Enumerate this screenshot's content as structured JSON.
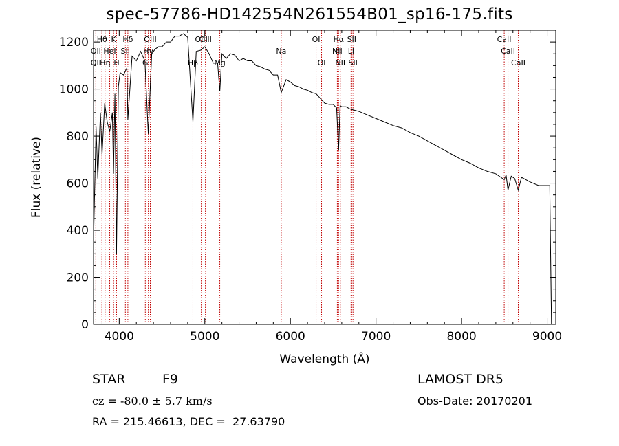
{
  "chart_data": {
    "type": "line",
    "title": "spec-57786-HD142554N261554B01_sp16-175.fits",
    "xlabel": "Wavelength (Å)",
    "ylabel": "Flux (relative)",
    "xlim": [
      3700,
      9100
    ],
    "ylim": [
      0,
      1250
    ],
    "x_ticks": [
      4000,
      5000,
      6000,
      7000,
      8000,
      9000
    ],
    "y_ticks": [
      0,
      200,
      400,
      600,
      800,
      1000,
      1200
    ],
    "grid": false,
    "line_color": "#000000",
    "marker_color": "#c00000",
    "series": [
      {
        "x": [
          3700,
          3730,
          3750,
          3780,
          3800,
          3830,
          3860,
          3890,
          3920,
          3933,
          3950,
          3968,
          3990,
          4010,
          4050,
          4090,
          4101,
          4150,
          4200,
          4250,
          4300,
          4340,
          4380,
          4420,
          4460,
          4500,
          4550,
          4600,
          4650,
          4700,
          4750,
          4800,
          4861,
          4900,
          4950,
          5000,
          5050,
          5100,
          5150,
          5175,
          5200,
          5250,
          5300,
          5350,
          5400,
          5450,
          5500,
          5550,
          5600,
          5650,
          5700,
          5750,
          5800,
          5850,
          5893,
          5950,
          6000,
          6050,
          6100,
          6150,
          6200,
          6250,
          6300,
          6350,
          6400,
          6450,
          6500,
          6540,
          6563,
          6580,
          6600,
          6650,
          6700,
          6800,
          6900,
          7000,
          7100,
          7200,
          7300,
          7400,
          7500,
          7600,
          7700,
          7800,
          7900,
          8000,
          8100,
          8200,
          8300,
          8400,
          8498,
          8520,
          8542,
          8580,
          8620,
          8662,
          8700,
          8800,
          8900,
          9000,
          9030,
          9050
        ],
        "y": [
          350,
          840,
          620,
          900,
          720,
          940,
          860,
          820,
          900,
          640,
          980,
          300,
          1010,
          1070,
          1060,
          1090,
          870,
          1140,
          1120,
          1160,
          1120,
          810,
          1150,
          1170,
          1180,
          1180,
          1200,
          1200,
          1225,
          1225,
          1235,
          1220,
          860,
          1160,
          1165,
          1180,
          1150,
          1110,
          1110,
          990,
          1150,
          1130,
          1150,
          1145,
          1120,
          1130,
          1120,
          1120,
          1100,
          1095,
          1085,
          1080,
          1060,
          1060,
          985,
          1040,
          1030,
          1015,
          1010,
          1000,
          995,
          985,
          980,
          960,
          940,
          935,
          935,
          920,
          740,
          930,
          925,
          925,
          915,
          905,
          890,
          875,
          860,
          845,
          835,
          815,
          800,
          780,
          760,
          740,
          720,
          700,
          685,
          665,
          650,
          640,
          615,
          635,
          570,
          630,
          620,
          570,
          625,
          605,
          590,
          590,
          590,
          0
        ]
      }
    ],
    "line_markers": [
      {
        "label": "Hθ",
        "x": 3798,
        "row": 0
      },
      {
        "label": "OII",
        "x": 3727,
        "row": 1
      },
      {
        "label": "OII",
        "x": 3727,
        "row": 2
      },
      {
        "label": "K",
        "x": 3934,
        "row": 0
      },
      {
        "label": "HeI",
        "x": 3889,
        "row": 1
      },
      {
        "label": "Hη",
        "x": 3835,
        "row": 2
      },
      {
        "label": "H",
        "x": 3969,
        "row": 2
      },
      {
        "label": "Hδ",
        "x": 4101,
        "row": 0
      },
      {
        "label": "SII",
        "x": 4072,
        "row": 1
      },
      {
        "label": "OIII",
        "x": 4363,
        "row": 0
      },
      {
        "label": "Hγ",
        "x": 4340,
        "row": 1
      },
      {
        "label": "G",
        "x": 4305,
        "row": 2
      },
      {
        "label": "Hβ",
        "x": 4861,
        "row": 2
      },
      {
        "label": "OIII",
        "x": 4959,
        "row": 0
      },
      {
        "label": "OIII",
        "x": 5007,
        "row": 0
      },
      {
        "label": "Mg",
        "x": 5175,
        "row": 2
      },
      {
        "label": "Na",
        "x": 5893,
        "row": 1
      },
      {
        "label": "OI",
        "x": 6300,
        "row": 0
      },
      {
        "label": "OI",
        "x": 6364,
        "row": 2
      },
      {
        "label": "Hα",
        "x": 6563,
        "row": 0
      },
      {
        "label": "NII",
        "x": 6548,
        "row": 1
      },
      {
        "label": "NII",
        "x": 6583,
        "row": 2
      },
      {
        "label": "SII",
        "x": 6716,
        "row": 0
      },
      {
        "label": "Li",
        "x": 6708,
        "row": 1
      },
      {
        "label": "SII",
        "x": 6731,
        "row": 2
      },
      {
        "label": "CaII",
        "x": 8498,
        "row": 0
      },
      {
        "label": "CaII",
        "x": 8542,
        "row": 1
      },
      {
        "label": "CaII",
        "x": 8662,
        "row": 2
      }
    ]
  },
  "info": {
    "object_type": "STAR",
    "subclass": "F9",
    "survey": "LAMOST DR5",
    "cz_line": "cz = -80.0 ± 5.7 km/s",
    "obs_date_line": "Obs-Date: 20170201",
    "coords_line": "RA = 215.46613, DEC =  27.63790"
  }
}
